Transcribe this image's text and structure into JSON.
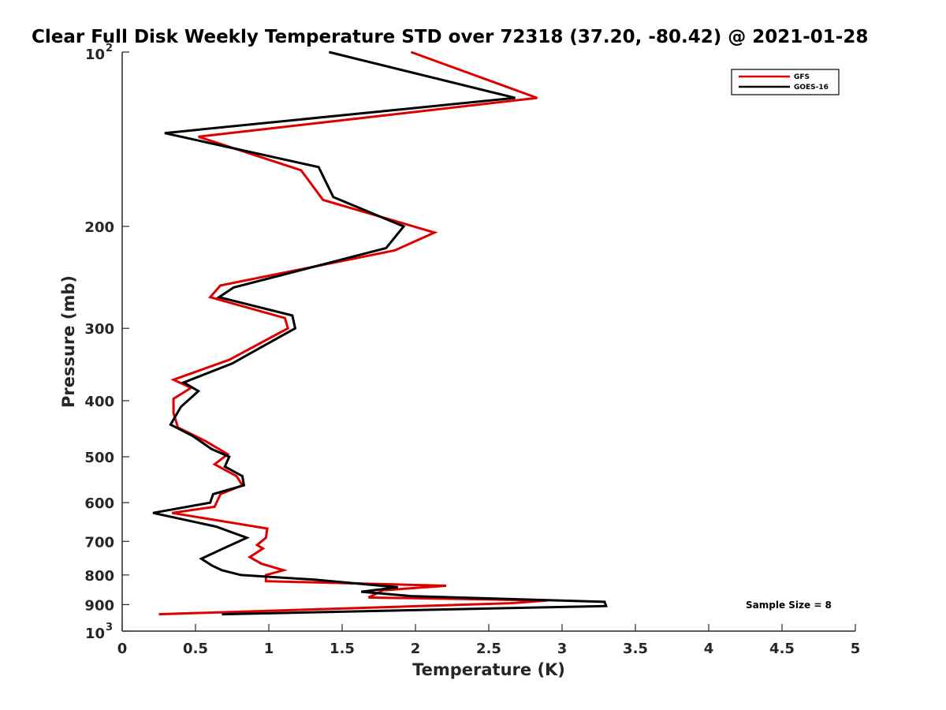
{
  "chart_data": {
    "type": "line",
    "title": "Clear Full Disk Weekly Temperature STD over 72318 (37.20, -80.42) @ 2021-01-28",
    "xlabel": "Temperature (K)",
    "ylabel": "Pressure (mb)",
    "xlim": [
      0,
      5
    ],
    "ylim": [
      100,
      1000
    ],
    "y_scale": "log",
    "y_reversed": true,
    "x_ticks": [
      "0",
      "0.5",
      "1",
      "1.5",
      "2",
      "2.5",
      "3",
      "3.5",
      "4",
      "4.5",
      "5"
    ],
    "y_ticks": [
      {
        "value": 100,
        "base": "10",
        "exp": "2"
      },
      {
        "value": 200,
        "label": "200"
      },
      {
        "value": 300,
        "label": "300"
      },
      {
        "value": 400,
        "label": "400"
      },
      {
        "value": 500,
        "label": "500"
      },
      {
        "value": 600,
        "label": "600"
      },
      {
        "value": 700,
        "label": "700"
      },
      {
        "value": 800,
        "label": "800"
      },
      {
        "value": 900,
        "label": "900"
      },
      {
        "value": 1000,
        "base": "10",
        "exp": "3"
      }
    ],
    "grid": false,
    "legend_position": "top-right",
    "annotation": "Sample Size = 8",
    "series": [
      {
        "name": "GFS",
        "color": "#dd0000",
        "points": [
          [
            1.97,
            100
          ],
          [
            2.83,
            120
          ],
          [
            0.52,
            140
          ],
          [
            1.22,
            160
          ],
          [
            1.37,
            180
          ],
          [
            2.13,
            205
          ],
          [
            1.86,
            220
          ],
          [
            0.67,
            253
          ],
          [
            0.6,
            265
          ],
          [
            1.11,
            288
          ],
          [
            1.13,
            300
          ],
          [
            0.73,
            340
          ],
          [
            0.35,
            368
          ],
          [
            0.47,
            380
          ],
          [
            0.35,
            397
          ],
          [
            0.35,
            420
          ],
          [
            0.38,
            445
          ],
          [
            0.57,
            470
          ],
          [
            0.72,
            495
          ],
          [
            0.63,
            515
          ],
          [
            0.78,
            540
          ],
          [
            0.82,
            560
          ],
          [
            0.67,
            580
          ],
          [
            0.63,
            610
          ],
          [
            0.34,
            625
          ],
          [
            0.75,
            650
          ],
          [
            0.99,
            665
          ],
          [
            0.98,
            690
          ],
          [
            0.92,
            710
          ],
          [
            0.96,
            720
          ],
          [
            0.87,
            745
          ],
          [
            0.95,
            765
          ],
          [
            1.1,
            785
          ],
          [
            0.98,
            800
          ],
          [
            0.98,
            820
          ],
          [
            2.21,
            835
          ],
          [
            1.78,
            850
          ],
          [
            1.68,
            875
          ],
          [
            2.9,
            885
          ],
          [
            2.65,
            895
          ],
          [
            0.25,
            935
          ]
        ]
      },
      {
        "name": "GOES-16",
        "color": "#000000",
        "points": [
          [
            1.41,
            100
          ],
          [
            2.68,
            120
          ],
          [
            0.29,
            138
          ],
          [
            1.34,
            158
          ],
          [
            1.44,
            178
          ],
          [
            1.92,
            200
          ],
          [
            1.8,
            218
          ],
          [
            0.76,
            255
          ],
          [
            0.66,
            265
          ],
          [
            1.16,
            285
          ],
          [
            1.18,
            300
          ],
          [
            0.98,
            320
          ],
          [
            0.75,
            345
          ],
          [
            0.42,
            372
          ],
          [
            0.52,
            385
          ],
          [
            0.4,
            410
          ],
          [
            0.33,
            440
          ],
          [
            0.48,
            460
          ],
          [
            0.61,
            485
          ],
          [
            0.73,
            500
          ],
          [
            0.7,
            520
          ],
          [
            0.82,
            540
          ],
          [
            0.83,
            560
          ],
          [
            0.62,
            580
          ],
          [
            0.6,
            600
          ],
          [
            0.21,
            625
          ],
          [
            0.64,
            660
          ],
          [
            0.85,
            690
          ],
          [
            0.69,
            720
          ],
          [
            0.54,
            750
          ],
          [
            0.61,
            770
          ],
          [
            0.68,
            785
          ],
          [
            0.81,
            800
          ],
          [
            1.31,
            815
          ],
          [
            1.88,
            840
          ],
          [
            1.63,
            855
          ],
          [
            1.97,
            870
          ],
          [
            3.29,
            890
          ],
          [
            3.3,
            905
          ],
          [
            0.68,
            935
          ]
        ]
      }
    ]
  }
}
